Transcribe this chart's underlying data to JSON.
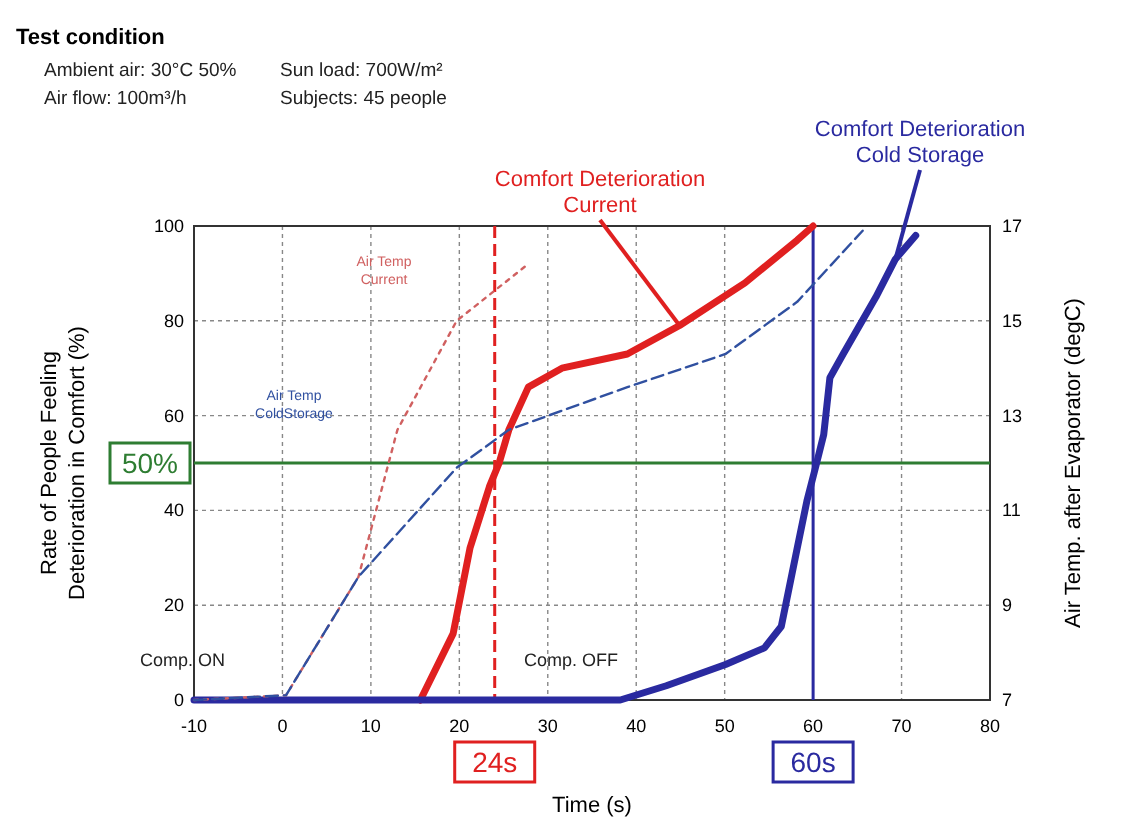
{
  "chart_data": {
    "type": "line",
    "title": "Test condition",
    "annotations": [
      "Ambient air: 30°C 50%",
      "Sun load: 700W/m²",
      "Air flow: 100m³/h",
      "Subjects: 45 people",
      "Comp. ON",
      "Comp. OFF"
    ],
    "xlabel": "Time (s)",
    "ylabel": "Rate of People Feeling\nDeterioration in Comfort (%)",
    "y2label": "Air Temp. after Evaporator (degC)",
    "xlim": [
      -10,
      80
    ],
    "xticks": [
      -10,
      0,
      10,
      20,
      30,
      40,
      50,
      60,
      70,
      80
    ],
    "ylim": [
      0,
      100
    ],
    "yticks": [
      0,
      20,
      40,
      60,
      80,
      100
    ],
    "y2lim": [
      7,
      17
    ],
    "y2ticks": [
      7,
      9,
      11,
      13,
      15,
      17
    ],
    "grid": true,
    "series": [
      {
        "name": "Comfort Deterioration\nCurrent",
        "color": "#e02020",
        "line_style": "solid",
        "x": [
          15.6,
          19.3,
          21.2,
          23.4,
          24.5,
          25.6,
          27.8,
          31.6,
          39,
          44.9,
          52.3,
          58.2,
          60
        ],
        "values": [
          0,
          14,
          32,
          45,
          50,
          57,
          66,
          70,
          73,
          79,
          88,
          97,
          100
        ]
      },
      {
        "name": "Comfort Deterioration\nCold Storage",
        "color": "#2a2aa0",
        "line_style": "solid",
        "x": [
          -10,
          38.2,
          43.4,
          50.1,
          54.5,
          56.4,
          58.2,
          59.3,
          60.4,
          61.2,
          61.9,
          63.4,
          67.1,
          69.3,
          71.6
        ],
        "values": [
          0,
          0,
          3,
          7.5,
          11,
          15.5,
          32,
          42,
          50,
          56,
          68,
          73,
          85,
          93,
          98
        ]
      },
      {
        "name": "Air Temp\nCurrent",
        "color": "#d06060",
        "line_style": "dotted",
        "axis": "y2",
        "x": [
          -10,
          0.4,
          8.6,
          13,
          19.7,
          27.8
        ],
        "values": [
          7,
          7.1,
          9.6,
          12.7,
          15,
          16.2
        ]
      },
      {
        "name": "Air Temp\nColdStorage",
        "color": "#3050a0",
        "line_style": "dashed",
        "axis": "y2",
        "x": [
          -10,
          0.4,
          8.6,
          19.7,
          25.6,
          39,
          50.1,
          58.2,
          65.6
        ],
        "values": [
          7,
          7.1,
          9.6,
          11.9,
          12.7,
          13.6,
          14.3,
          15.4,
          16.9
        ]
      }
    ],
    "ref_lines": [
      {
        "axis": "y",
        "value": 50,
        "label": "50%",
        "color": "#2e7d32",
        "line_style": "solid"
      },
      {
        "axis": "x",
        "value": 24,
        "label": "24s",
        "color": "#e02020",
        "line_style": "dashed"
      },
      {
        "axis": "x",
        "value": 60,
        "label": "60s",
        "color": "#2a2aa0",
        "line_style": "solid"
      }
    ]
  }
}
